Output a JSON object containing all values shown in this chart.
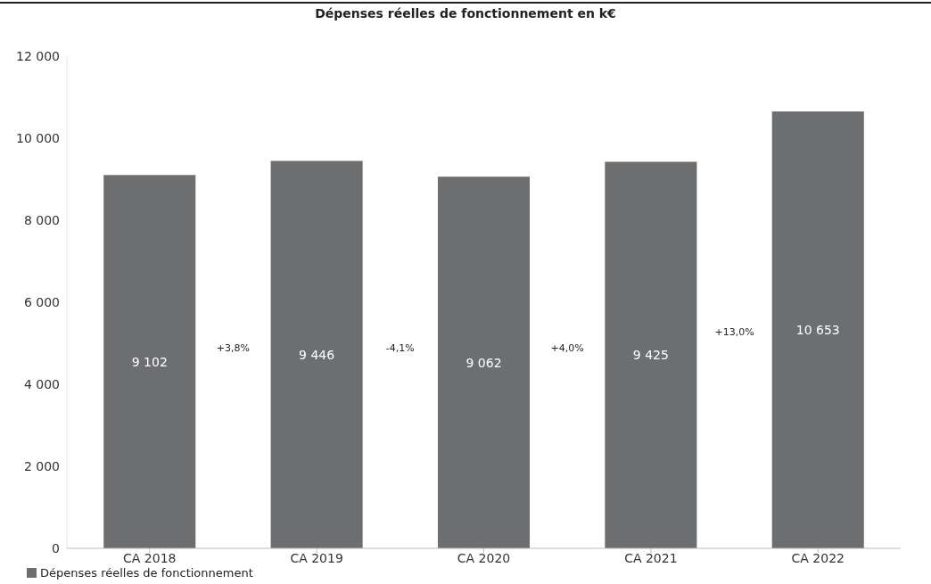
{
  "chart_data": {
    "type": "bar",
    "title": "Dépenses réelles de fonctionnement en k€",
    "categories": [
      "CA 2018",
      "CA 2019",
      "CA 2020",
      "CA 2021",
      "CA 2022"
    ],
    "series": [
      {
        "name": "Dépenses réelles de fonctionnement",
        "color": "#6d6e70",
        "values": [
          9102,
          9446,
          9062,
          9425,
          10653
        ]
      }
    ],
    "value_labels": [
      "9 102",
      "9 446",
      "9 062",
      "9 425",
      "10 653"
    ],
    "annotations": [
      "+3,8%",
      "-4,1%",
      "+4,0%",
      "+13,0%"
    ],
    "ylim": [
      0,
      12000
    ],
    "yticks": [
      {
        "value": 0,
        "label": "0"
      },
      {
        "value": 2000,
        "label": "2 000"
      },
      {
        "value": 4000,
        "label": "4 000"
      },
      {
        "value": 6000,
        "label": "6 000"
      },
      {
        "value": 8000,
        "label": "8 000"
      },
      {
        "value": 10000,
        "label": "10 000"
      },
      {
        "value": 12000,
        "label": "12 000"
      }
    ],
    "grid": false,
    "legend": "bottom left"
  }
}
